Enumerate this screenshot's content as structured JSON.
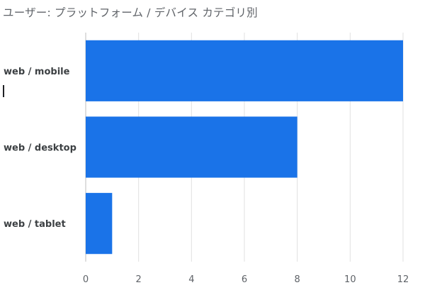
{
  "chart_data": {
    "type": "bar",
    "orientation": "horizontal",
    "title": "ユーザー: プラットフォーム / デバイス カテゴリ別",
    "categories": [
      "web / mobile",
      "web / desktop",
      "web / tablet"
    ],
    "values": [
      12,
      8,
      1
    ],
    "xlim": [
      0,
      12
    ],
    "x_ticks": [
      0,
      2,
      4,
      6,
      8,
      10,
      12
    ],
    "grid": true,
    "legend": "none",
    "bar_color": "#1a73e8"
  }
}
